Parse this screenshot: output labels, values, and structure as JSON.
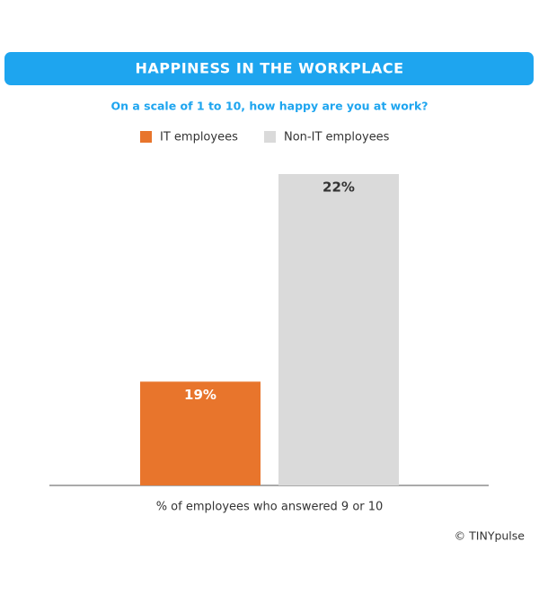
{
  "chart_data": {
    "type": "bar",
    "title": "HAPPINESS IN THE WORKPLACE",
    "subtitle": "On a scale of 1 to 10, how happy are you at work?",
    "categories": [
      "% of employees who answered 9 or 10"
    ],
    "series": [
      {
        "name": "IT employees",
        "color": "#e8752c",
        "values": [
          19
        ],
        "value_labels": [
          "19%"
        ]
      },
      {
        "name": "Non-IT employees",
        "color": "#dadada",
        "values": [
          22
        ],
        "value_labels": [
          "22%"
        ]
      }
    ],
    "ylim": [
      17.5,
      22
    ],
    "source": "© TINYpulse"
  }
}
